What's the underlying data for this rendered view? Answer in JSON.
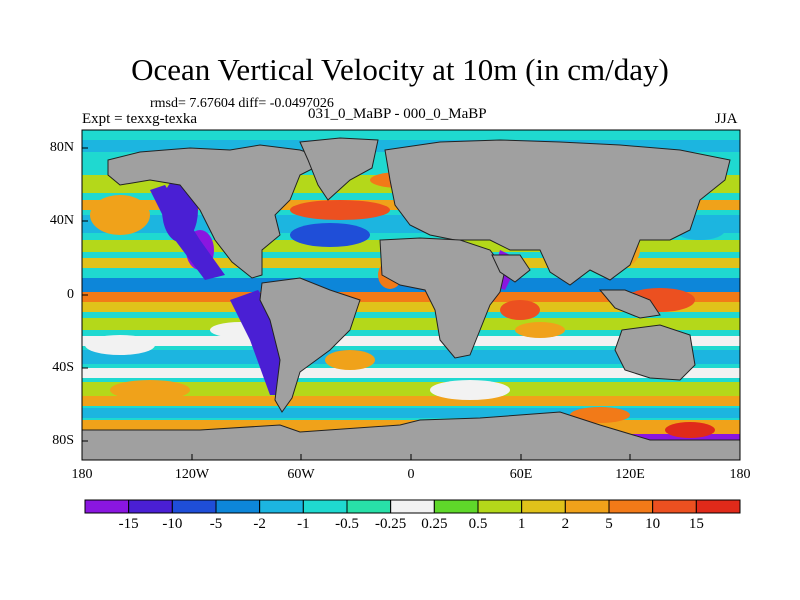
{
  "header": {
    "title": "Ocean Vertical Velocity at 10m (in cm/day)",
    "stats": "rmsd= 7.67604 diff= -0.0497026",
    "experiment": "Expt = texxg-texka",
    "difference": "031_0_MaBP - 000_0_MaBP",
    "season": "JJA"
  },
  "axes": {
    "lat_ticks": [
      "80N",
      "40N",
      "0",
      "40S",
      "80S"
    ],
    "lon_ticks": [
      "180",
      "120W",
      "60W",
      "0",
      "60E",
      "120E",
      "180"
    ]
  },
  "colorbar": {
    "labels": [
      "-15",
      "-10",
      "-5",
      "-2",
      "-1",
      "-0.5",
      "-0.25",
      "0.25",
      "0.5",
      "1",
      "2",
      "5",
      "10",
      "15"
    ],
    "colors": [
      "#8a16e0",
      "#4a1fd4",
      "#1f4ed8",
      "#0d86d9",
      "#1cb5e0",
      "#1fd9d0",
      "#28e0a8",
      "#f2f2f2",
      "#5fd82a",
      "#b4d81a",
      "#e0c21a",
      "#f0a21a",
      "#f27a18",
      "#ec5020",
      "#e02a1a"
    ]
  },
  "map": {
    "land_color": "#a0a0a0"
  }
}
